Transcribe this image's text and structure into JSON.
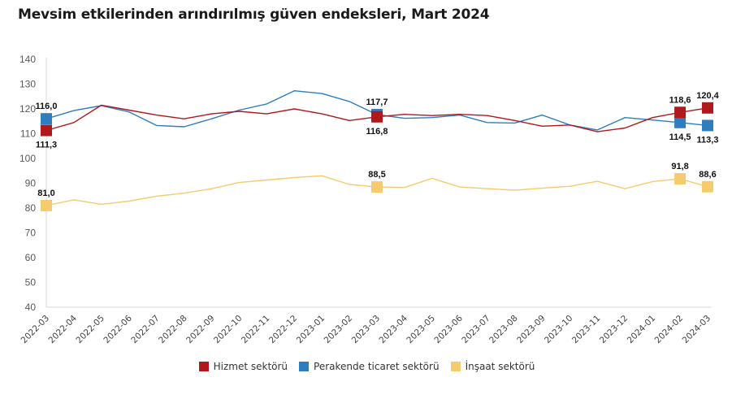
{
  "chart_data": {
    "type": "line",
    "title": "Mevsim etkilerinden arındırılmış güven endeksleri, Mart 2024",
    "xlabel": "",
    "ylabel": "",
    "ylim": [
      40,
      140
    ],
    "yticks": [
      "40",
      "50",
      "60",
      "70",
      "80",
      "90",
      "100",
      "110",
      "120",
      "130",
      "140"
    ],
    "grid": false,
    "legend_position": "bottom",
    "categories": [
      "2022-03",
      "2022-04",
      "2022-05",
      "2022-06",
      "2022-07",
      "2022-08",
      "2022-09",
      "2022-10",
      "2022-11",
      "2022-12",
      "2023-01",
      "2023-02",
      "2023-03",
      "2023-04",
      "2023-05",
      "2023-06",
      "2023-07",
      "2023-08",
      "2023-09",
      "2023-10",
      "2023-11",
      "2023-12",
      "2024-01",
      "2024-02",
      "2024-03"
    ],
    "series": [
      {
        "name": "Hizmet sektörü",
        "color": "#B0181C",
        "values": [
          111.3,
          114.5,
          121.5,
          119.5,
          117.5,
          116.0,
          118.0,
          119.0,
          118.0,
          120.0,
          118.0,
          115.3,
          116.8,
          117.8,
          117.3,
          117.8,
          117.3,
          115.3,
          113.0,
          113.5,
          110.8,
          112.3,
          116.5,
          118.6,
          120.4
        ],
        "labels": [
          {
            "index": 0,
            "text": "111,3",
            "pos": "below"
          },
          {
            "index": 12,
            "text": "116,8",
            "pos": "below"
          },
          {
            "index": 23,
            "text": "118,6",
            "pos": "above"
          },
          {
            "index": 24,
            "text": "120,4",
            "pos": "above"
          }
        ]
      },
      {
        "name": "Perakende ticaret sektörü",
        "color": "#2E7DBF",
        "values": [
          116.0,
          119.3,
          121.3,
          118.8,
          113.3,
          112.8,
          116.0,
          119.5,
          122.0,
          127.3,
          126.2,
          123.0,
          117.7,
          116.2,
          116.5,
          117.5,
          114.5,
          114.3,
          117.5,
          113.5,
          111.5,
          116.5,
          115.5,
          114.5,
          113.3
        ],
        "labels": [
          {
            "index": 0,
            "text": "116,0",
            "pos": "above"
          },
          {
            "index": 12,
            "text": "117,7",
            "pos": "above"
          },
          {
            "index": 23,
            "text": "114,5",
            "pos": "below"
          },
          {
            "index": 24,
            "text": "113,3",
            "pos": "below"
          }
        ]
      },
      {
        "name": "İnşaat sektörü",
        "color": "#F5CB6E",
        "values": [
          81.0,
          83.3,
          81.5,
          82.8,
          84.8,
          86.0,
          87.8,
          90.3,
          91.3,
          92.3,
          93.0,
          89.5,
          88.5,
          88.3,
          92.0,
          88.5,
          87.8,
          87.2,
          88.0,
          88.8,
          90.8,
          87.8,
          90.7,
          91.8,
          88.6
        ],
        "labels": [
          {
            "index": 0,
            "text": "81,0",
            "pos": "above"
          },
          {
            "index": 12,
            "text": "88,5",
            "pos": "above"
          },
          {
            "index": 23,
            "text": "91,8",
            "pos": "above"
          },
          {
            "index": 24,
            "text": "88,6",
            "pos": "above"
          }
        ]
      }
    ],
    "markers_at": [
      0,
      12,
      23,
      24
    ]
  }
}
